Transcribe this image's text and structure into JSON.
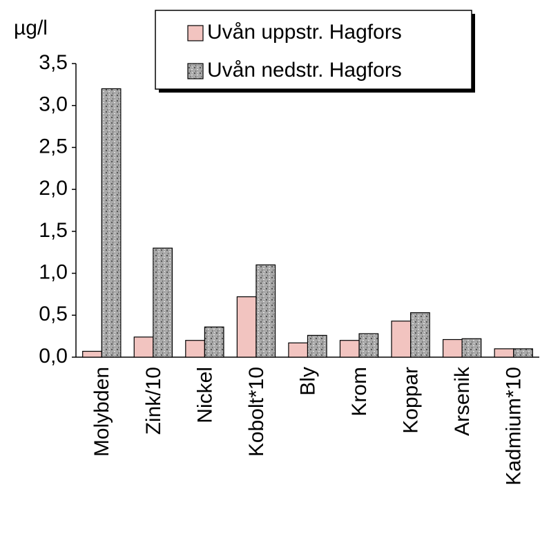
{
  "chart_data": {
    "type": "bar",
    "ylabel": "µg/l",
    "categories": [
      "Molybden",
      "Zink/10",
      "Nickel",
      "Kobolt*10",
      "Bly",
      "Krom",
      "Koppar",
      "Arsenik",
      "Kadmium*10"
    ],
    "series": [
      {
        "name": "Uvån uppstr. Hagfors",
        "color": "#f2c4c0",
        "values": [
          0.07,
          0.24,
          0.2,
          0.72,
          0.17,
          0.2,
          0.43,
          0.21,
          0.1
        ]
      },
      {
        "name": "Uvån nedstr. Hagfors",
        "color": "#a8a8a8",
        "values": [
          3.2,
          1.3,
          0.36,
          1.1,
          0.26,
          0.28,
          0.53,
          0.22,
          0.1
        ]
      }
    ],
    "ylim": [
      0,
      3.5
    ],
    "yticks": [
      {
        "value": 0,
        "label": "0,0"
      },
      {
        "value": 0.5,
        "label": "0,5"
      },
      {
        "value": 1,
        "label": "1,0"
      },
      {
        "value": 1.5,
        "label": "1,5"
      },
      {
        "value": 2,
        "label": "2,0"
      },
      {
        "value": 2.5,
        "label": "2,5"
      },
      {
        "value": 3,
        "label": "3,0"
      },
      {
        "value": 3.5,
        "label": "3,5"
      }
    ],
    "legend": "top"
  }
}
